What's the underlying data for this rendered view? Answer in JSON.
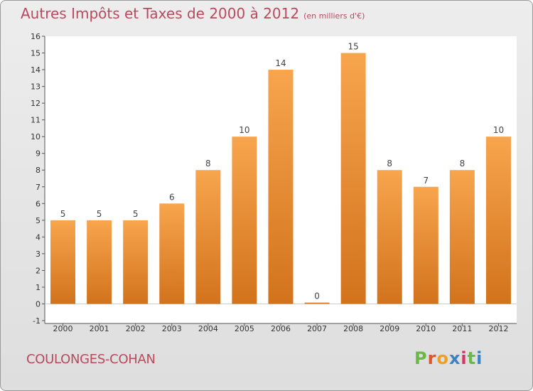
{
  "header": {
    "title": "Autres Impôts et Taxes de 2000 à 2012",
    "subtitle": "(en milliers d'€)"
  },
  "footer": {
    "commune": "COULONGES-COHAN",
    "brand": [
      "P",
      "r",
      "o",
      "x",
      "i",
      "t",
      "i"
    ]
  },
  "colors": {
    "bar_light": "#f7a54e",
    "bar_dark": "#d2731c",
    "title": "#b84a5e",
    "brand": [
      "#6ab845",
      "#e0542a",
      "#f0a020",
      "#3a84c6",
      "#d8345f",
      "#6ab845",
      "#3a84c6"
    ]
  },
  "chart_data": {
    "type": "bar",
    "title": "Autres Impôts et Taxes de 2000 à 2012",
    "categories": [
      "2000",
      "2001",
      "2002",
      "2003",
      "2004",
      "2005",
      "2006",
      "2007",
      "2008",
      "2009",
      "2010",
      "2011",
      "2012"
    ],
    "values": [
      5,
      5,
      5,
      6,
      8,
      10,
      14,
      0,
      15,
      8,
      7,
      8,
      10
    ],
    "ylim": [
      -1,
      16
    ],
    "yticks": [
      -1,
      0,
      1,
      2,
      3,
      4,
      5,
      6,
      7,
      8,
      9,
      10,
      11,
      12,
      13,
      14,
      15,
      16
    ],
    "xlabel": "",
    "ylabel": "",
    "grid": false,
    "legend": "none"
  }
}
